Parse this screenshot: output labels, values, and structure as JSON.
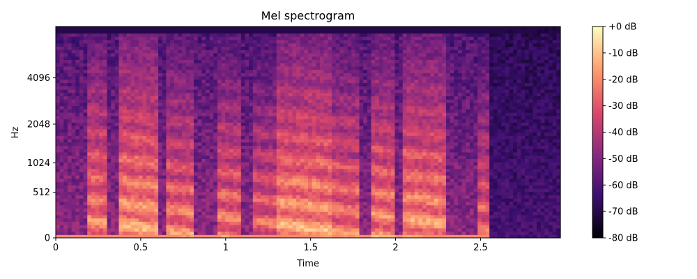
{
  "chart_data": {
    "type": "heatmap",
    "title": "Mel spectrogram",
    "xlabel": "Time",
    "ylabel": "Hz",
    "xlim": [
      0,
      2.97
    ],
    "x_ticks": [
      0,
      0.5,
      1,
      1.5,
      2,
      2.5
    ],
    "x_tick_labels": [
      "0",
      "0.5",
      "1",
      "1.5",
      "2",
      "2.5"
    ],
    "y_scale": "mel",
    "y_ticks": [
      0,
      512,
      1024,
      2048,
      4096
    ],
    "y_tick_labels": [
      "0",
      "512",
      "1024",
      "2048",
      "4096"
    ],
    "colorbar": {
      "range_db": [
        -80,
        0
      ],
      "ticks": [
        0,
        -10,
        -20,
        -30,
        -40,
        -50,
        -60,
        -70,
        -80
      ],
      "tick_labels": [
        "+0 dB",
        "-10 dB",
        "-20 dB",
        "-30 dB",
        "-40 dB",
        "-50 dB",
        "-60 dB",
        "-70 dB",
        "-80 dB"
      ],
      "colormap": "magma"
    },
    "colormap_stops": [
      "#000004",
      "#3b0f70",
      "#8c2981",
      "#de4968",
      "#fe9f6d",
      "#fcfdbf"
    ],
    "voiced_segments": [
      {
        "start": 0.18,
        "end": 0.3,
        "level_db": -12
      },
      {
        "start": 0.38,
        "end": 0.6,
        "level_db": -8
      },
      {
        "start": 0.64,
        "end": 0.82,
        "level_db": -14
      },
      {
        "start": 0.95,
        "end": 1.1,
        "level_db": -15
      },
      {
        "start": 1.15,
        "end": 1.3,
        "level_db": -18
      },
      {
        "start": 1.3,
        "end": 1.62,
        "level_db": -8
      },
      {
        "start": 1.62,
        "end": 1.78,
        "level_db": -14
      },
      {
        "start": 1.85,
        "end": 2.0,
        "level_db": -12
      },
      {
        "start": 2.05,
        "end": 2.3,
        "level_db": -10
      },
      {
        "start": 2.48,
        "end": 2.55,
        "level_db": -18
      }
    ]
  }
}
